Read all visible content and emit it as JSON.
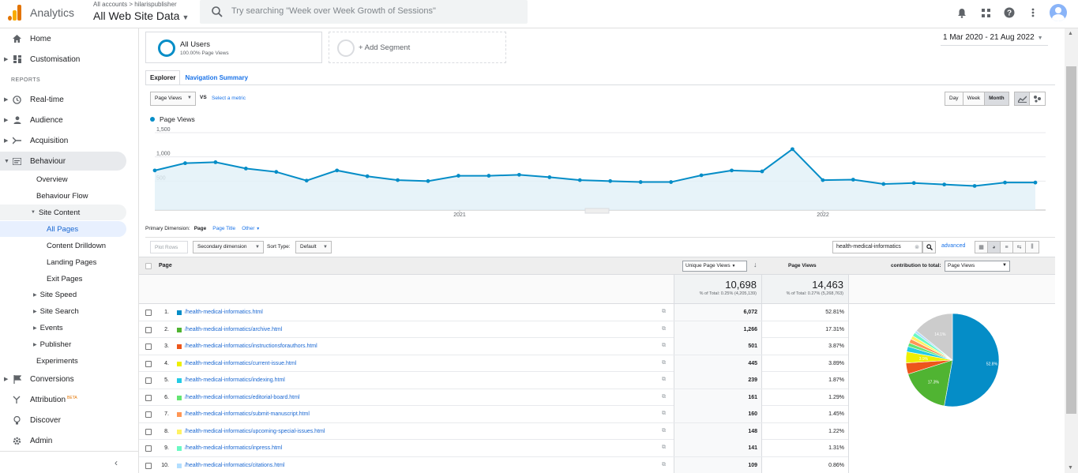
{
  "header": {
    "app_name": "Analytics",
    "account_crumb": "All accounts > hilarispublisher",
    "property_title": "All Web Site Data",
    "search_placeholder": "Try searching \"Week over Week Growth of Sessions\"",
    "icons": [
      "bell-icon",
      "apps-grid-icon",
      "help-icon",
      "more-vert-icon",
      "avatar"
    ]
  },
  "sidebar": {
    "home": "Home",
    "customisation": "Customisation",
    "reports_label": "REPORTS",
    "realtime": "Real-time",
    "audience": "Audience",
    "acquisition": "Acquisition",
    "behaviour": "Behaviour",
    "overview": "Overview",
    "behaviour_flow": "Behaviour Flow",
    "site_content": "Site Content",
    "all_pages": "All Pages",
    "content_drilldown": "Content Drilldown",
    "landing_pages": "Landing Pages",
    "exit_pages": "Exit Pages",
    "site_speed": "Site Speed",
    "site_search": "Site Search",
    "events": "Events",
    "publisher": "Publisher",
    "experiments": "Experiments",
    "conversions": "Conversions",
    "attribution": "Attribution",
    "attribution_badge": "BETA",
    "discover": "Discover",
    "admin": "Admin"
  },
  "segments": {
    "active_name": "All Users",
    "active_sub": "100.00% Page Views",
    "add_label": "+ Add Segment"
  },
  "date_range": "1 Mar 2020 - 21 Aug 2022",
  "tabs": [
    "Explorer",
    "Navigation Summary"
  ],
  "metric_select": "Page Views",
  "vs_label": "VS",
  "select_metric": "Select a metric",
  "granularity": [
    "Day",
    "Week",
    "Month"
  ],
  "chart_data": {
    "type": "line",
    "title": "",
    "legend": [
      "Page Views"
    ],
    "series": [
      {
        "name": "Page Views",
        "values": [
          720,
          870,
          890,
          760,
          690,
          510,
          720,
          600,
          520,
          500,
          610,
          610,
          630,
          580,
          520,
          500,
          480,
          480,
          620,
          720,
          700,
          1160,
          520,
          530,
          440,
          460,
          430,
          400,
          470,
          470
        ]
      }
    ],
    "y_ticks": [
      "1,500",
      "1,000",
      "500"
    ],
    "ylim": [
      0,
      1500
    ],
    "x_ticks": [
      "2021",
      "2022"
    ],
    "color": "#058dc7",
    "grid": true
  },
  "primary_dimension": {
    "label": "Primary Dimension:",
    "value": "Page",
    "alt1": "Page Title",
    "alt2": "Other"
  },
  "table_tools": {
    "plot_rows": "Plot Rows",
    "secondary_dimension": "Secondary dimension",
    "sort_type_label": "Sort Type:",
    "sort_type_value": "Default",
    "filter_value": "health-medical-informatics",
    "advanced": "advanced"
  },
  "table": {
    "col_page": "Page",
    "col_upv": "Unique Page Views",
    "col_pv": "Page Views",
    "contrib_label": "contribution to total:",
    "contrib_select": "Page Views",
    "total_upv": "10,698",
    "total_upv_pct": "% of Total: 0.25% (4,205,139)",
    "total_pv": "14,463",
    "total_pv_pct": "% of Total: 0.27% (5,268,763)",
    "rows": [
      {
        "n": "1.",
        "url": "/health-medical-informatics.html",
        "upv": "6,072",
        "pv": "52.81%",
        "color": "#058dc7"
      },
      {
        "n": "2.",
        "url": "/health-medical-informatics/archive.html",
        "upv": "1,266",
        "pv": "17.31%",
        "color": "#50b432"
      },
      {
        "n": "3.",
        "url": "/health-medical-informatics/instructionsforauthors.html",
        "upv": "501",
        "pv": "3.87%",
        "color": "#ed561b"
      },
      {
        "n": "4.",
        "url": "/health-medical-informatics/current-issue.html",
        "upv": "445",
        "pv": "3.89%",
        "color": "#edef00"
      },
      {
        "n": "5.",
        "url": "/health-medical-informatics/indexing.html",
        "upv": "239",
        "pv": "1.87%",
        "color": "#24cbe5"
      },
      {
        "n": "6.",
        "url": "/health-medical-informatics/editorial-board.html",
        "upv": "161",
        "pv": "1.29%",
        "color": "#64e572"
      },
      {
        "n": "7.",
        "url": "/health-medical-informatics/submit-manuscript.html",
        "upv": "160",
        "pv": "1.45%",
        "color": "#ff9655"
      },
      {
        "n": "8.",
        "url": "/health-medical-informatics/upcoming-special-issues.html",
        "upv": "148",
        "pv": "1.22%",
        "color": "#fff263"
      },
      {
        "n": "9.",
        "url": "/health-medical-informatics/inpress.html",
        "upv": "141",
        "pv": "1.31%",
        "color": "#6af9c4"
      },
      {
        "n": "10.",
        "url": "/health-medical-informatics/citations.html",
        "upv": "109",
        "pv": "0.86%",
        "color": "#b2deff"
      }
    ]
  },
  "pie": {
    "slices": [
      {
        "value": 52.81,
        "color": "#058dc7",
        "label": "52.8%"
      },
      {
        "value": 17.31,
        "color": "#50b432",
        "label": "17.3%"
      },
      {
        "value": 3.87,
        "color": "#ed561b",
        "label": ""
      },
      {
        "value": 3.89,
        "color": "#edef00",
        "label": "3.9%"
      },
      {
        "value": 1.87,
        "color": "#24cbe5",
        "label": ""
      },
      {
        "value": 1.29,
        "color": "#64e572",
        "label": ""
      },
      {
        "value": 1.45,
        "color": "#ff9655",
        "label": ""
      },
      {
        "value": 1.22,
        "color": "#fff263",
        "label": ""
      },
      {
        "value": 1.31,
        "color": "#6af9c4",
        "label": ""
      },
      {
        "value": 0.86,
        "color": "#b2deff",
        "label": ""
      },
      {
        "value": 14.1,
        "color": "#cccccc",
        "label": "14.1%"
      }
    ]
  }
}
